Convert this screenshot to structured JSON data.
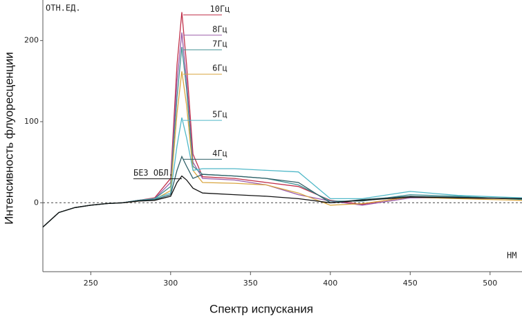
{
  "chart_data": {
    "type": "line",
    "y_title": "Интенсивность флуоресценции",
    "x_title": "Спектр испускания",
    "y_unit": "ОТН.ЕД.",
    "x_unit": "НМ",
    "xlim": [
      220,
      520
    ],
    "xticks": [
      250,
      300,
      350,
      400,
      450,
      500
    ],
    "ylim": [
      -85,
      250
    ],
    "yticks": [
      0,
      100,
      200
    ],
    "zero_line": true,
    "grid": false,
    "x": [
      220,
      230,
      240,
      250,
      260,
      270,
      280,
      290,
      300,
      304,
      307,
      310,
      314,
      320,
      340,
      360,
      380,
      400,
      420,
      450,
      480,
      520
    ],
    "series": [
      {
        "name": "10Гц",
        "color": "#c0304a",
        "values": [
          -30,
          -12,
          -6,
          -3,
          -1,
          0,
          3,
          6,
          30,
          170,
          235,
          170,
          60,
          32,
          30,
          25,
          20,
          3,
          -2,
          8,
          6,
          5
        ]
      },
      {
        "name": "8Гц",
        "color": "#9a5aa8",
        "values": [
          -30,
          -12,
          -6,
          -3,
          -1,
          0,
          3,
          5,
          25,
          150,
          210,
          150,
          50,
          30,
          28,
          22,
          10,
          2,
          -3,
          6,
          6,
          5
        ]
      },
      {
        "name": "7Гц",
        "color": "#3f8f92",
        "values": [
          -30,
          -12,
          -6,
          -3,
          -1,
          0,
          3,
          5,
          20,
          130,
          192,
          140,
          45,
          35,
          33,
          30,
          22,
          2,
          2,
          10,
          8,
          4
        ]
      },
      {
        "name": "6Гц",
        "color": "#d9a640",
        "values": [
          -30,
          -12,
          -6,
          -3,
          -1,
          0,
          2,
          4,
          15,
          110,
          162,
          120,
          40,
          25,
          24,
          22,
          12,
          -3,
          -1,
          7,
          5,
          3
        ]
      },
      {
        "name": "5Гц",
        "color": "#4fb8c8",
        "values": [
          -30,
          -12,
          -6,
          -3,
          -1,
          0,
          3,
          5,
          12,
          70,
          105,
          80,
          40,
          42,
          42,
          40,
          38,
          5,
          5,
          14,
          9,
          6
        ]
      },
      {
        "name": "4Гц",
        "color": "#2f5f66",
        "values": [
          -30,
          -12,
          -6,
          -3,
          -1,
          0,
          3,
          4,
          10,
          40,
          57,
          45,
          30,
          35,
          33,
          30,
          25,
          0,
          4,
          8,
          7,
          5
        ]
      },
      {
        "name": "БЕЗ ОБЛ.",
        "color": "#111111",
        "values": [
          -30,
          -12,
          -6,
          -3,
          -1,
          0,
          2,
          3,
          8,
          25,
          33,
          28,
          18,
          12,
          10,
          8,
          5,
          0,
          3,
          7,
          6,
          5
        ]
      }
    ]
  }
}
